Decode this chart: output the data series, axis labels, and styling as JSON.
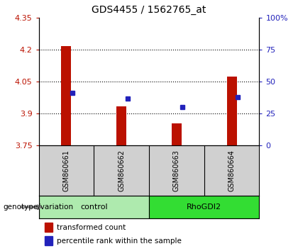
{
  "title": "GDS4455 / 1562765_at",
  "samples": [
    "GSM860661",
    "GSM860662",
    "GSM860663",
    "GSM860664"
  ],
  "groups": [
    {
      "name": "control",
      "indices": [
        0,
        1
      ],
      "color": "#AEEAAE"
    },
    {
      "name": "RhoGDI2",
      "indices": [
        2,
        3
      ],
      "color": "#33DD33"
    }
  ],
  "transformed_count": [
    4.215,
    3.935,
    3.855,
    4.075
  ],
  "bar_bottom": 3.75,
  "percentile_rank": [
    41,
    37,
    30,
    38
  ],
  "ylim_left": [
    3.75,
    4.35
  ],
  "ylim_right": [
    0,
    100
  ],
  "yticks_left": [
    3.75,
    3.9,
    4.05,
    4.2,
    4.35
  ],
  "ytick_labels_left": [
    "3.75",
    "3.9",
    "4.05",
    "4.2",
    "4.35"
  ],
  "yticks_right": [
    0,
    25,
    50,
    75,
    100
  ],
  "ytick_labels_right": [
    "0",
    "25",
    "50",
    "75",
    "100%"
  ],
  "bar_color": "#BB1100",
  "dot_color": "#2222BB",
  "bg_plot": "#FFFFFF",
  "bg_label_area": "#D0D0D0",
  "legend_items": [
    "transformed count",
    "percentile rank within the sample"
  ],
  "group_label_text": "genotype/variation"
}
